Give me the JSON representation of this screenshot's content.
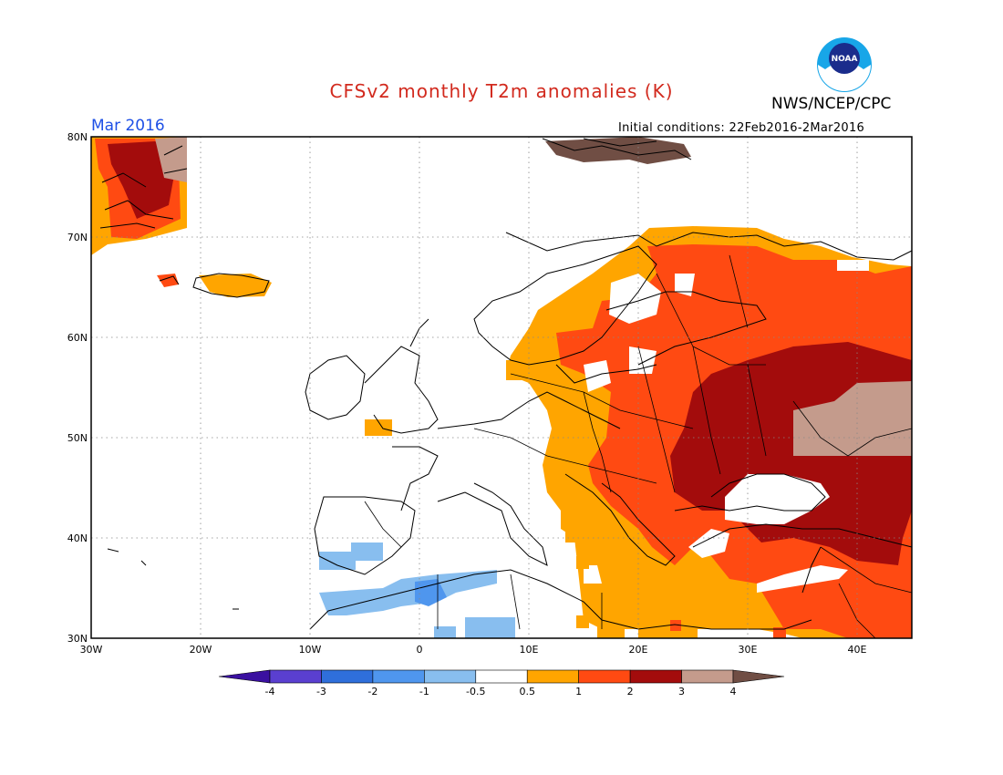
{
  "header": {
    "title": "CFSv2 monthly T2m anomalies (K)",
    "agency": "NWS/NCEP/CPC",
    "month": "Mar 2016",
    "initial_conditions": "Initial conditions: 22Feb2016-2Mar2016",
    "logo_text": "noaa"
  },
  "map": {
    "lat_labels": [
      "80N",
      "70N",
      "60N",
      "50N",
      "40N",
      "30N"
    ],
    "lon_labels": [
      "30W",
      "20W",
      "10W",
      "0",
      "10E",
      "20E",
      "30E",
      "40E"
    ],
    "lon_range": [
      -30,
      45
    ],
    "lat_range": [
      30,
      80
    ],
    "grid": "dotted",
    "regions": [
      {
        "name": "greenland",
        "level": "1-2"
      },
      {
        "name": "iceland",
        "level": "0.5-1"
      },
      {
        "name": "scandinavia",
        "level": "0.5-1"
      },
      {
        "name": "finland-baltic",
        "level": "1-2"
      },
      {
        "name": "eastern-europe",
        "level": "1-2"
      },
      {
        "name": "ukraine-russia",
        "level": "2-3"
      },
      {
        "name": "kazakhstan",
        "level": "3-4"
      },
      {
        "name": "turkey",
        "level": "1-2"
      },
      {
        "name": "north-africa",
        "level": "-1 to -0.5"
      },
      {
        "name": "iberia",
        "level": "-1 to -0.5"
      }
    ]
  },
  "colorbar": {
    "labels": [
      "-4",
      "-3",
      "-2",
      "-1",
      "-0.5",
      "0.5",
      "1",
      "2",
      "3",
      "4"
    ],
    "colors": [
      "#3a10a0",
      "#5a3fd0",
      "#2f6fdb",
      "#4f96ee",
      "#88beef",
      "#ffffff",
      "#ffa500",
      "#ff4a12",
      "#a30c0c",
      "#c49b8c",
      "#704e44"
    ]
  }
}
